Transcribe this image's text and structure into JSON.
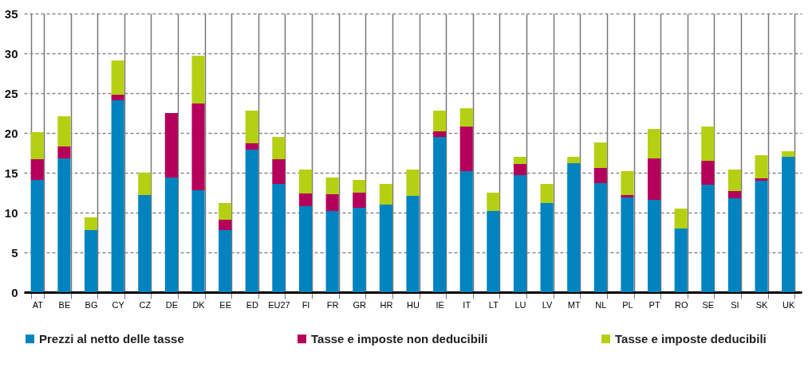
{
  "chart_data": {
    "type": "bar",
    "stacked": true,
    "categories": [
      "AT",
      "BE",
      "BG",
      "CY",
      "CZ",
      "DE",
      "DK",
      "EE",
      "ED",
      "EU27",
      "FI",
      "FR",
      "GR",
      "HR",
      "HU",
      "IE",
      "IT",
      "LT",
      "LU",
      "LV",
      "MT",
      "NL",
      "PL",
      "PT",
      "RO",
      "SE",
      "SI",
      "SK",
      "UK"
    ],
    "series": [
      {
        "name": "Prezzi al netto delle tasse",
        "color": "#0083bf",
        "values": [
          14.1,
          16.8,
          7.8,
          24.1,
          12.2,
          14.4,
          12.8,
          7.8,
          17.9,
          13.6,
          10.8,
          10.2,
          10.6,
          11.0,
          12.1,
          19.5,
          15.2,
          10.2,
          14.7,
          11.2,
          16.2,
          13.7,
          11.9,
          11.6,
          8.0,
          13.5,
          11.8,
          14.0,
          17.0
        ]
      },
      {
        "name": "Tasse e imposte non deducibili",
        "color": "#b5005b",
        "values": [
          2.6,
          1.5,
          0,
          0.7,
          0,
          8.1,
          10.9,
          1.3,
          0.8,
          3.1,
          1.6,
          2.1,
          1.9,
          0,
          0,
          0.7,
          5.6,
          0,
          1.4,
          0,
          0,
          1.9,
          0.3,
          5.2,
          0,
          3.0,
          0.9,
          0.3,
          0
        ]
      },
      {
        "name": "Tasse e imposte deducibili",
        "color": "#b5d013",
        "values": [
          3.4,
          3.8,
          1.6,
          4.3,
          2.8,
          0,
          6.0,
          2.1,
          4.1,
          2.8,
          3.0,
          2.1,
          1.6,
          2.6,
          3.3,
          2.6,
          2.3,
          2.3,
          0.9,
          2.4,
          0.8,
          3.2,
          3.0,
          3.7,
          2.5,
          4.3,
          2.7,
          2.9,
          0.7
        ]
      }
    ],
    "ylim": [
      0,
      35
    ],
    "yticks": [
      0,
      5,
      10,
      15,
      20,
      25,
      30,
      35
    ],
    "grid": true,
    "legend": "bottom"
  }
}
